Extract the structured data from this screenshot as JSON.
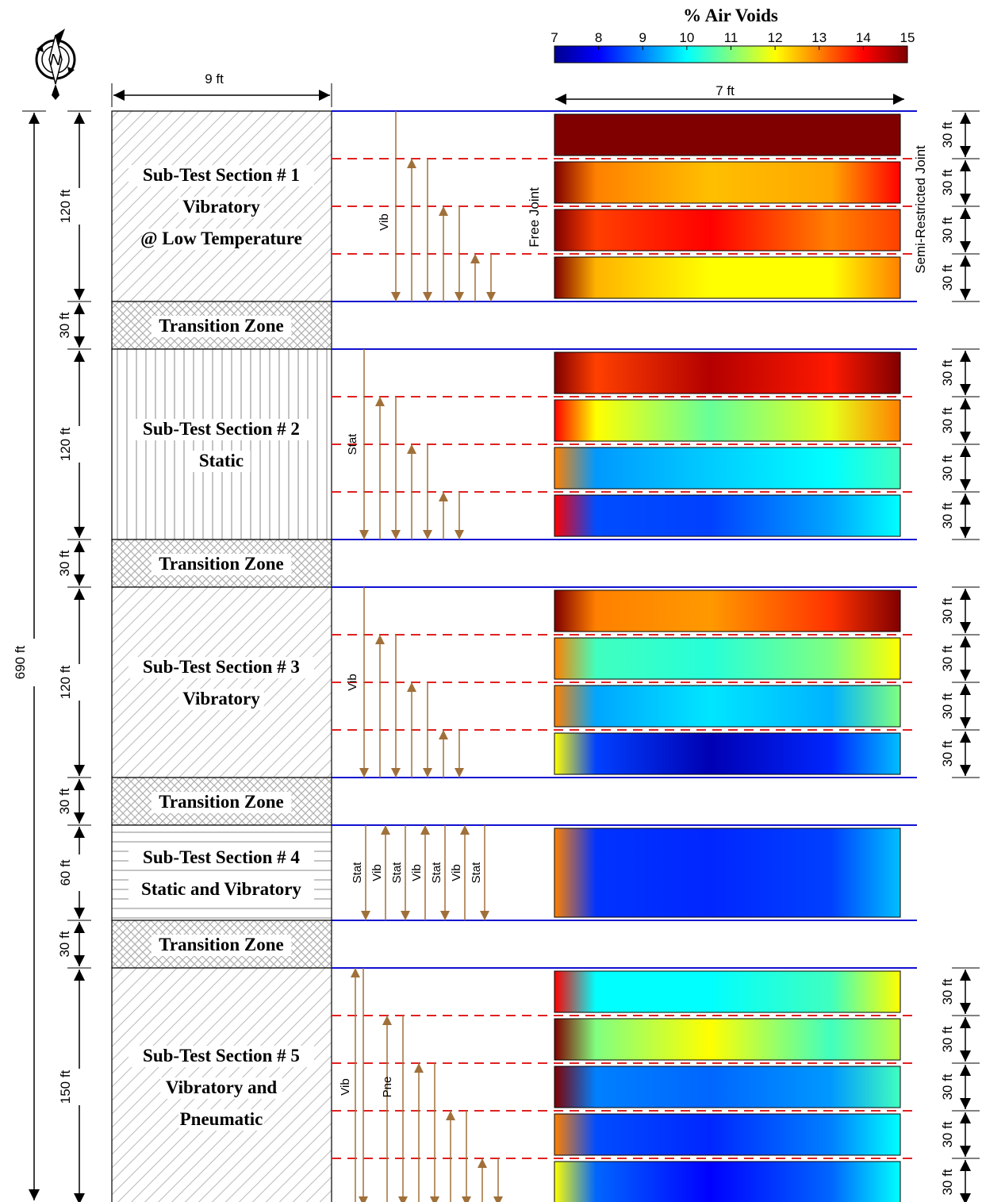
{
  "colorbar": {
    "title": "% Air Voids",
    "ticks": [
      "7",
      "8",
      "9",
      "10",
      "11",
      "12",
      "13",
      "14",
      "15"
    ],
    "range": [
      7,
      15
    ]
  },
  "dimensions": {
    "width_left": "9 ft",
    "width_right": "7 ft",
    "total_length": "690 ft"
  },
  "joints": {
    "free": "Free Joint",
    "semi_restricted": "Semi-Restricted Joint"
  },
  "compass_label": "N",
  "sections": [
    {
      "lines": [
        "Sub-Test Section # 1",
        "Vibratory",
        "@ Low Temperature"
      ],
      "length_label": "120 ft",
      "hatch": "diag-hatch",
      "roller_labels": [
        "Vib"
      ],
      "subsections": [
        {
          "label": "30 ft",
          "voids": {
            "stops": [
              15,
              15,
              15,
              15,
              15
            ]
          }
        },
        {
          "label": "30 ft",
          "voids": {
            "stops": [
              15,
              13,
              12.5,
              12.7,
              14
            ]
          }
        },
        {
          "label": "30 ft",
          "voids": {
            "stops": [
              15,
              13.5,
              14,
              13,
              13.5
            ]
          }
        },
        {
          "label": "30 ft",
          "voids": {
            "stops": [
              15,
              12.6,
              12,
              12,
              13
            ]
          }
        }
      ]
    },
    {
      "lines": [
        "Transition Zone"
      ],
      "length_label": "30 ft",
      "hatch": "cross-hatch"
    },
    {
      "lines": [
        "Sub-Test Section # 2",
        "Static"
      ],
      "length_label": "120 ft",
      "hatch": "vert-hatch",
      "roller_labels": [
        "Stat"
      ],
      "subsections": [
        {
          "label": "30 ft",
          "voids": {
            "stops": [
              15,
              13.5,
              14.6,
              13.8,
              15
            ]
          }
        },
        {
          "label": "30 ft",
          "voids": {
            "stops": [
              14,
              12,
              10.8,
              11.8,
              13
            ]
          }
        },
        {
          "label": "30 ft",
          "voids": {
            "stops": [
              13,
              9.2,
              9.6,
              10,
              10.5
            ]
          }
        },
        {
          "label": "30 ft",
          "voids": {
            "stops": [
              14,
              8.6,
              8.5,
              9.3,
              10
            ]
          }
        }
      ]
    },
    {
      "lines": [
        "Transition Zone"
      ],
      "length_label": "30 ft",
      "hatch": "cross-hatch"
    },
    {
      "lines": [
        "Sub-Test Section # 3",
        "Vibratory"
      ],
      "length_label": "120 ft",
      "hatch": "diag-hatch",
      "roller_labels": [
        "Vib"
      ],
      "subsections": [
        {
          "label": "30 ft",
          "voids": {
            "stops": [
              15,
              13,
              12.8,
              13.6,
              15
            ]
          }
        },
        {
          "label": "30 ft",
          "voids": {
            "stops": [
              13,
              10.5,
              10.3,
              11,
              12
            ]
          }
        },
        {
          "label": "30 ft",
          "voids": {
            "stops": [
              13,
              9.3,
              9.8,
              9.4,
              11
            ]
          }
        },
        {
          "label": "30 ft",
          "voids": {
            "stops": [
              12,
              8.5,
              7.4,
              8.3,
              9.5
            ]
          }
        }
      ]
    },
    {
      "lines": [
        "Transition Zone"
      ],
      "length_label": "30 ft",
      "hatch": "cross-hatch"
    },
    {
      "lines": [
        "Sub-Test Section # 4",
        "Static and Vibratory"
      ],
      "length_label": "60 ft",
      "hatch": "horiz-hatch",
      "roller_labels": [
        "Stat",
        "Vib",
        "Stat",
        "Vib",
        "Stat",
        "Vib",
        "Stat"
      ],
      "subsections": [
        {
          "label": "",
          "voids": {
            "stops": [
              13,
              8.4,
              8.3,
              8.5,
              9.5
            ]
          }
        }
      ]
    },
    {
      "lines": [
        "Transition Zone"
      ],
      "length_label": "30 ft",
      "hatch": "cross-hatch"
    },
    {
      "lines": [
        "Sub-Test Section # 5",
        "Vibratory and",
        "Pneumatic"
      ],
      "length_label": "150 ft",
      "hatch": "diag-hatch",
      "roller_labels": [
        "Vib",
        "Pne"
      ],
      "subsections": [
        {
          "label": "30 ft",
          "voids": {
            "stops": [
              14,
              10,
              10,
              10.5,
              12
            ]
          }
        },
        {
          "label": "30 ft",
          "voids": {
            "stops": [
              15,
              11,
              12,
              10.5,
              11.5
            ]
          }
        },
        {
          "label": "30 ft",
          "voids": {
            "stops": [
              15,
              9,
              8.8,
              9.2,
              10.5
            ]
          }
        },
        {
          "label": "30 ft",
          "voids": {
            "stops": [
              13,
              8.6,
              8.3,
              9,
              10
            ]
          }
        },
        {
          "label": "30 ft",
          "voids": {
            "stops": [
              12,
              8.8,
              8,
              8.8,
              10
            ]
          }
        }
      ]
    }
  ]
}
